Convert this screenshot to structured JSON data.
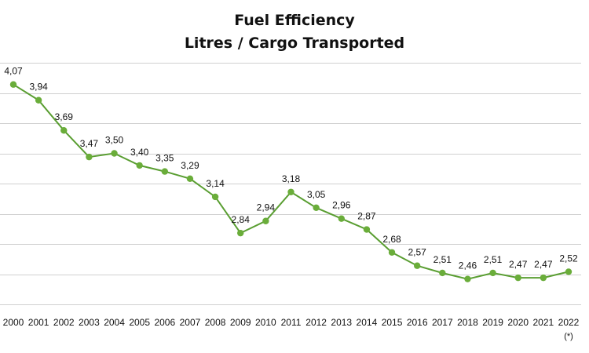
{
  "chart_data": {
    "type": "line",
    "title": "Fuel Efficiency",
    "subtitle": "Litres / Cargo Transported",
    "xlabel": "",
    "ylabel": "",
    "categories": [
      "2000",
      "2001",
      "2002",
      "2003",
      "2004",
      "2005",
      "2006",
      "2007",
      "2008",
      "2009",
      "2010",
      "2011",
      "2012",
      "2013",
      "2014",
      "2015",
      "2016",
      "2017",
      "2018",
      "2019",
      "2020",
      "2021",
      "2022"
    ],
    "category_notes": {
      "2022": "(*)"
    },
    "series": [
      {
        "values": [
          4.07,
          3.94,
          3.69,
          3.47,
          3.5,
          3.4,
          3.35,
          3.29,
          3.14,
          2.84,
          2.94,
          3.18,
          3.05,
          2.96,
          2.87,
          2.68,
          2.57,
          2.51,
          2.46,
          2.51,
          2.47,
          2.47,
          2.52
        ],
        "labels": [
          "4,07",
          "3,94",
          "3,69",
          "3,47",
          "3,50",
          "3,40",
          "3,35",
          "3,29",
          "3,14",
          "2,84",
          "2,94",
          "3,18",
          "3,05",
          "2,96",
          "2,87",
          "2,68",
          "2,57",
          "2,51",
          "2,46",
          "2,51",
          "2,47",
          "2,47",
          "2,52"
        ]
      }
    ],
    "ylim": [
      2.25,
      4.25
    ],
    "y_gridlines": [
      2.25,
      2.5,
      2.75,
      3.0,
      3.25,
      3.5,
      3.75,
      4.0,
      4.25
    ],
    "y_tick_labels_shown": false,
    "grid": true,
    "legend": "none",
    "colors": {
      "line": "#5a9e32",
      "marker": "#6aad3a",
      "grid": "#d0d0d0"
    }
  }
}
